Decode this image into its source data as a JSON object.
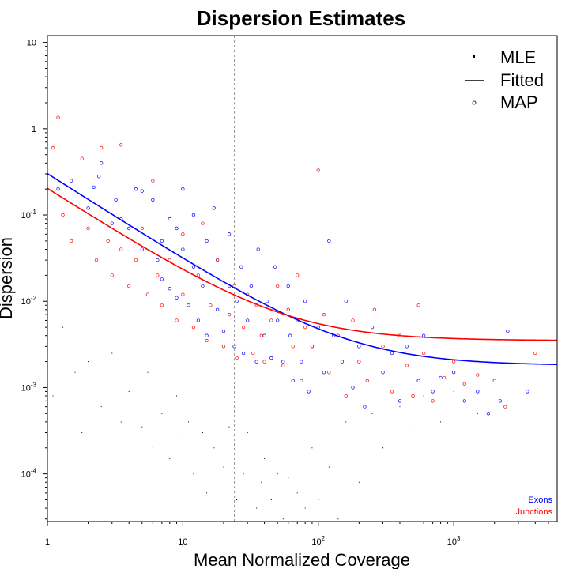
{
  "chart_data": {
    "type": "scatter",
    "title": "Dispersion Estimates",
    "xlabel": "Mean Normalized Coverage",
    "ylabel": "Dispersion",
    "x_scale": "log",
    "y_scale": "log",
    "xlim": [
      1,
      5800
    ],
    "ylim": [
      2.8e-05,
      12
    ],
    "x_ticks": [
      {
        "value": 1,
        "base": "1",
        "exp": ""
      },
      {
        "value": 10,
        "base": "10",
        "exp": ""
      },
      {
        "value": 100,
        "base": "10",
        "exp": "2"
      },
      {
        "value": 1000,
        "base": "10",
        "exp": "3"
      }
    ],
    "y_ticks": [
      {
        "value": 10,
        "base": "10",
        "exp": ""
      },
      {
        "value": 1,
        "base": "1",
        "exp": ""
      },
      {
        "value": 0.1,
        "base": "10",
        "exp": "-1"
      },
      {
        "value": 0.01,
        "base": "10",
        "exp": "-2"
      },
      {
        "value": 0.001,
        "base": "10",
        "exp": "-3"
      },
      {
        "value": 0.0001,
        "base": "10",
        "exp": "-4"
      }
    ],
    "reference_line_x": 24,
    "legend": {
      "placement": "top-right",
      "entries": [
        {
          "label": "MLE",
          "symbol": "dot"
        },
        {
          "label": "Fitted",
          "symbol": "line"
        },
        {
          "label": "MAP",
          "symbol": "circle"
        }
      ]
    },
    "groups_legend": {
      "placement": "bottom-right",
      "entries": [
        {
          "label": "Exons",
          "color": "#0000ff"
        },
        {
          "label": "Junctions",
          "color": "#ff0000"
        }
      ]
    },
    "fitted_curves": [
      {
        "name": "Exons",
        "color": "#0000ff",
        "asymptote": 0.0018,
        "coefficient": 0.3
      },
      {
        "name": "Junctions",
        "color": "#ff0000",
        "asymptote": 0.0035,
        "coefficient": 0.2
      }
    ],
    "series": [
      {
        "name": "Exons",
        "color": "#0000ff",
        "points": [
          [
            1.2,
            0.2
          ],
          [
            1.5,
            0.25
          ],
          [
            2,
            0.12
          ],
          [
            2.2,
            0.21
          ],
          [
            2.4,
            0.28
          ],
          [
            2.5,
            0.4
          ],
          [
            3,
            0.08
          ],
          [
            3.2,
            0.15
          ],
          [
            3.5,
            0.09
          ],
          [
            4,
            0.07
          ],
          [
            4.5,
            0.2
          ],
          [
            5,
            0.19
          ],
          [
            5,
            0.04
          ],
          [
            6,
            0.15
          ],
          [
            6.5,
            0.03
          ],
          [
            7,
            0.018
          ],
          [
            7,
            0.05
          ],
          [
            8,
            0.09
          ],
          [
            8,
            0.014
          ],
          [
            9,
            0.07
          ],
          [
            9,
            0.011
          ],
          [
            10,
            0.2
          ],
          [
            10,
            0.04
          ],
          [
            11,
            0.009
          ],
          [
            12,
            0.025
          ],
          [
            12,
            0.1
          ],
          [
            13,
            0.006
          ],
          [
            14,
            0.015
          ],
          [
            15,
            0.05
          ],
          [
            15,
            0.004
          ],
          [
            17,
            0.12
          ],
          [
            18,
            0.008
          ],
          [
            18,
            0.03
          ],
          [
            20,
            0.0045
          ],
          [
            22,
            0.015
          ],
          [
            22,
            0.06
          ],
          [
            24,
            0.003
          ],
          [
            25,
            0.01
          ],
          [
            27,
            0.025
          ],
          [
            28,
            0.0025
          ],
          [
            30,
            0.006
          ],
          [
            32,
            0.015
          ],
          [
            35,
            0.002
          ],
          [
            36,
            0.04
          ],
          [
            40,
            0.004
          ],
          [
            42,
            0.01
          ],
          [
            45,
            0.0022
          ],
          [
            48,
            0.025
          ],
          [
            50,
            0.006
          ],
          [
            55,
            0.002
          ],
          [
            60,
            0.015
          ],
          [
            62,
            0.004
          ],
          [
            65,
            0.0012
          ],
          [
            70,
            0.006
          ],
          [
            75,
            0.002
          ],
          [
            80,
            0.01
          ],
          [
            85,
            0.0009
          ],
          [
            90,
            0.003
          ],
          [
            100,
            0.005
          ],
          [
            110,
            0.0015
          ],
          [
            120,
            0.05
          ],
          [
            130,
            0.004
          ],
          [
            150,
            0.002
          ],
          [
            160,
            0.01
          ],
          [
            180,
            0.001
          ],
          [
            200,
            0.003
          ],
          [
            220,
            0.0006
          ],
          [
            250,
            0.005
          ],
          [
            300,
            0.0015
          ],
          [
            350,
            0.0025
          ],
          [
            400,
            0.0007
          ],
          [
            450,
            0.003
          ],
          [
            550,
            0.0012
          ],
          [
            600,
            0.004
          ],
          [
            700,
            0.0009
          ],
          [
            800,
            0.0013
          ],
          [
            1000,
            0.0015
          ],
          [
            1200,
            0.0007
          ],
          [
            1500,
            0.0009
          ],
          [
            1800,
            0.0005
          ],
          [
            2200,
            0.0007
          ],
          [
            2500,
            0.0045
          ],
          [
            3500,
            0.0009
          ]
        ]
      },
      {
        "name": "Junctions",
        "color": "#ff0000",
        "points": [
          [
            1.1,
            0.6
          ],
          [
            1.2,
            1.35
          ],
          [
            1.3,
            0.1
          ],
          [
            1.5,
            0.05
          ],
          [
            1.8,
            0.45
          ],
          [
            2,
            0.07
          ],
          [
            2.3,
            0.03
          ],
          [
            2.5,
            0.6
          ],
          [
            2.8,
            0.05
          ],
          [
            3,
            0.02
          ],
          [
            3.5,
            0.65
          ],
          [
            3.5,
            0.04
          ],
          [
            4,
            0.015
          ],
          [
            4.5,
            0.03
          ],
          [
            5,
            0.07
          ],
          [
            5.5,
            0.012
          ],
          [
            6,
            0.25
          ],
          [
            6.5,
            0.02
          ],
          [
            7,
            0.009
          ],
          [
            8,
            0.03
          ],
          [
            9,
            0.006
          ],
          [
            10,
            0.06
          ],
          [
            10,
            0.012
          ],
          [
            12,
            0.005
          ],
          [
            13,
            0.02
          ],
          [
            14,
            0.08
          ],
          [
            15,
            0.0035
          ],
          [
            16,
            0.009
          ],
          [
            18,
            0.03
          ],
          [
            20,
            0.003
          ],
          [
            22,
            0.007
          ],
          [
            24,
            0.015
          ],
          [
            25,
            0.0022
          ],
          [
            28,
            0.005
          ],
          [
            30,
            0.012
          ],
          [
            33,
            0.0025
          ],
          [
            35,
            0.009
          ],
          [
            38,
            0.004
          ],
          [
            40,
            0.002
          ],
          [
            45,
            0.006
          ],
          [
            50,
            0.015
          ],
          [
            55,
            0.0018
          ],
          [
            60,
            0.008
          ],
          [
            65,
            0.003
          ],
          [
            70,
            0.02
          ],
          [
            75,
            0.0012
          ],
          [
            80,
            0.005
          ],
          [
            90,
            0.003
          ],
          [
            100,
            0.33
          ],
          [
            110,
            0.007
          ],
          [
            120,
            0.0015
          ],
          [
            140,
            0.004
          ],
          [
            160,
            0.0008
          ],
          [
            180,
            0.006
          ],
          [
            200,
            0.002
          ],
          [
            230,
            0.0012
          ],
          [
            260,
            0.008
          ],
          [
            300,
            0.003
          ],
          [
            350,
            0.0009
          ],
          [
            400,
            0.004
          ],
          [
            450,
            0.0018
          ],
          [
            500,
            0.0008
          ],
          [
            550,
            0.009
          ],
          [
            600,
            0.0025
          ],
          [
            700,
            0.0007
          ],
          [
            850,
            0.0013
          ],
          [
            1000,
            0.002
          ],
          [
            1200,
            0.0011
          ],
          [
            1500,
            0.0014
          ],
          [
            2000,
            0.0012
          ],
          [
            2400,
            0.0006
          ],
          [
            4000,
            0.0025
          ]
        ]
      },
      {
        "name": "MLE",
        "color": "#000000",
        "points": [
          [
            1.1,
            0.0008
          ],
          [
            1.3,
            0.005
          ],
          [
            1.6,
            0.0015
          ],
          [
            1.8,
            0.0003
          ],
          [
            2,
            0.002
          ],
          [
            2.5,
            0.0006
          ],
          [
            3,
            0.0025
          ],
          [
            3.5,
            0.0004
          ],
          [
            4,
            0.0009
          ],
          [
            5,
            0.00035
          ],
          [
            5.5,
            0.0015
          ],
          [
            6,
            0.0002
          ],
          [
            7,
            0.0005
          ],
          [
            8,
            0.00015
          ],
          [
            9,
            0.0008
          ],
          [
            10,
            0.00025
          ],
          [
            11,
            0.0004
          ],
          [
            12,
            0.0001
          ],
          [
            14,
            0.0003
          ],
          [
            15,
            6e-05
          ],
          [
            17,
            0.0002
          ],
          [
            20,
            0.00012
          ],
          [
            22,
            0.00035
          ],
          [
            25,
            5e-05
          ],
          [
            28,
            0.0001
          ],
          [
            30,
            0.0003
          ],
          [
            35,
            4e-05
          ],
          [
            38,
            8e-05
          ],
          [
            40,
            0.00015
          ],
          [
            45,
            5e-05
          ],
          [
            50,
            0.0001
          ],
          [
            55,
            3e-05
          ],
          [
            60,
            9e-05
          ],
          [
            70,
            6e-05
          ],
          [
            80,
            4e-05
          ],
          [
            90,
            0.0002
          ],
          [
            100,
            5e-05
          ],
          [
            120,
            0.00012
          ],
          [
            140,
            3e-05
          ],
          [
            160,
            0.0004
          ],
          [
            200,
            8e-05
          ],
          [
            250,
            0.0005
          ],
          [
            300,
            0.0002
          ],
          [
            400,
            0.0006
          ],
          [
            500,
            0.00035
          ],
          [
            600,
            0.0008
          ],
          [
            800,
            0.0004
          ],
          [
            1000,
            0.0009
          ],
          [
            1500,
            0.0005
          ],
          [
            2500,
            0.0007
          ]
        ]
      }
    ]
  }
}
